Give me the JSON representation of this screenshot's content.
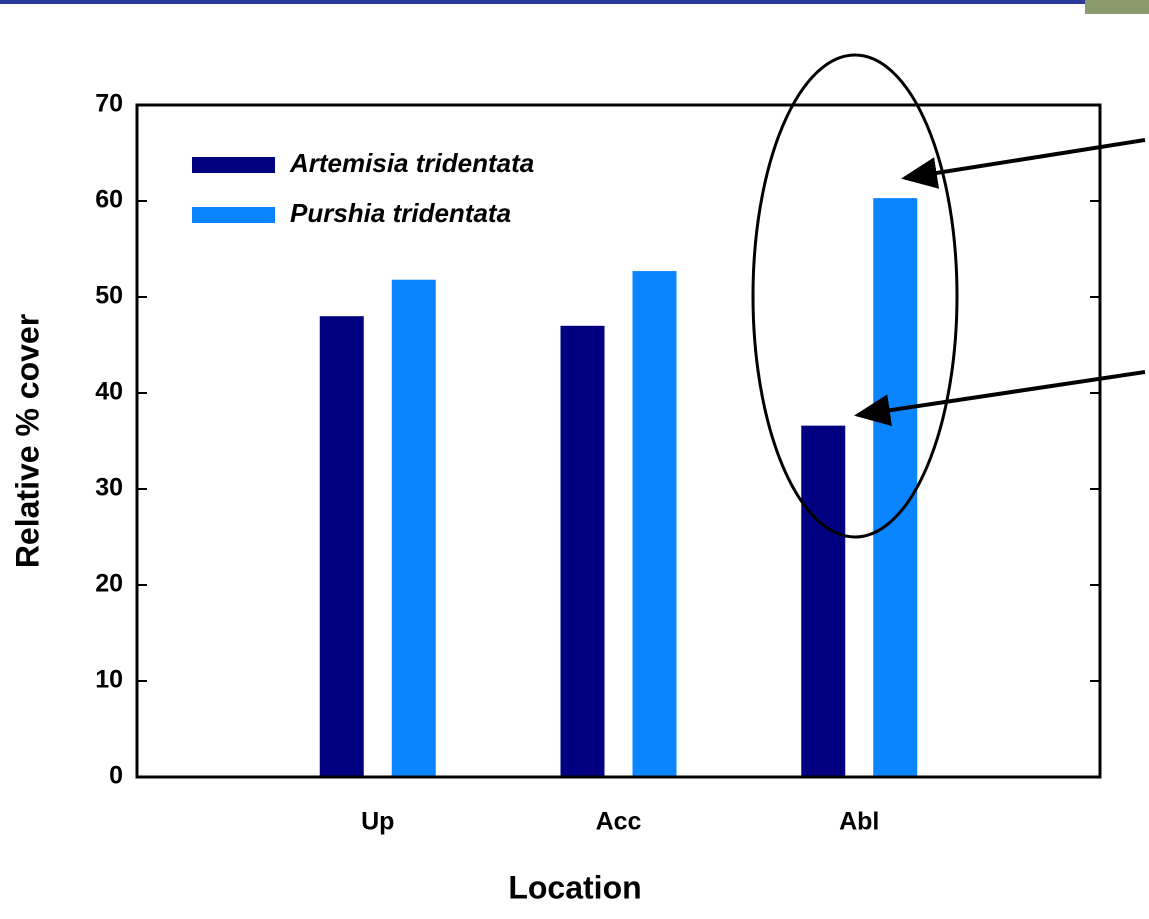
{
  "chart_data": {
    "type": "bar",
    "x_label": "Location",
    "y_label": "Relative % cover",
    "categories": [
      "Up",
      "Acc",
      "Abl"
    ],
    "series": [
      {
        "name": "Artemisia tridentata",
        "color": "#000080",
        "values": [
          48.0,
          47.0,
          36.6
        ]
      },
      {
        "name": "Purshia tridentata",
        "color": "#0a84ff",
        "values": [
          51.8,
          52.7,
          60.3
        ]
      }
    ],
    "ylim": [
      0,
      70
    ],
    "yticks": [
      0,
      10,
      20,
      30,
      40,
      50,
      60,
      70
    ]
  }
}
